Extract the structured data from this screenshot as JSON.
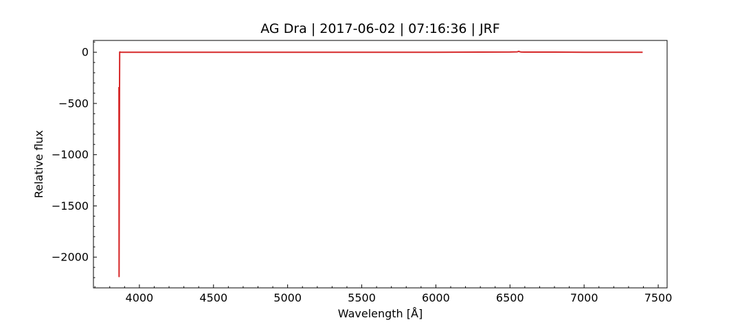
{
  "chart_data": {
    "type": "line",
    "title": "AG Dra | 2017-06-02 | 07:16:36 | JRF",
    "xlabel": "Wavelength [Å]",
    "ylabel": "Relative flux",
    "xlim": [
      3690,
      7560
    ],
    "ylim": [
      -2300,
      115
    ],
    "x_ticks": [
      4000,
      4500,
      5000,
      5500,
      6000,
      6500,
      7000,
      7500
    ],
    "y_ticks": [
      0,
      -500,
      -1000,
      -1500,
      -2000
    ],
    "x_minor_step": 100,
    "y_minor_step": 100,
    "grid": false,
    "series": [
      {
        "color": "#d62728",
        "x": [
          3862,
          3863,
          3864,
          3865,
          3866,
          3867,
          3868,
          3869,
          3870,
          3875,
          3900,
          4000,
          4500,
          5000,
          5500,
          6000,
          6300,
          6500,
          6550,
          6560,
          6565,
          6575,
          6600,
          6800,
          7000,
          7200,
          7395
        ],
        "y": [
          -340,
          -2190,
          -1500,
          -900,
          -400,
          0,
          3,
          2,
          1,
          0,
          0,
          0,
          0,
          0,
          0,
          0,
          1,
          2,
          4,
          9,
          5,
          2,
          1,
          1,
          0,
          0,
          0
        ]
      }
    ]
  }
}
